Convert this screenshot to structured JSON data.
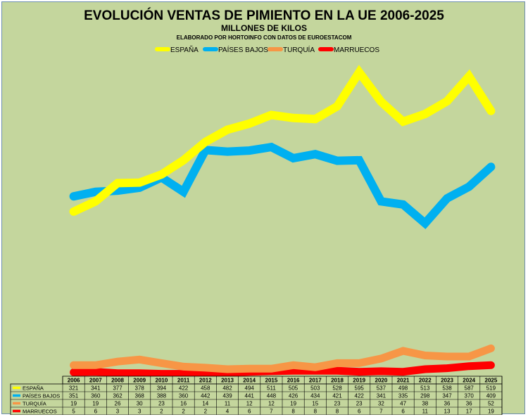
{
  "chart_data": {
    "type": "line",
    "title": "EVOLUCIÓN VENTAS DE PIMIENTO EN LA UE 2006-2025",
    "subtitle": "MILLONES DE KILOS",
    "source": "ELABORADO POR HORTOINFO CON DATOS DE EUROESTACOM",
    "xlabel": "",
    "ylabel": "",
    "ylim": [
      0,
      650
    ],
    "legend_position": "top",
    "x": [
      "2006",
      "2007",
      "2008",
      "2009",
      "2010",
      "2011",
      "2012",
      "2013",
      "2014",
      "2015",
      "2016",
      "2017",
      "2018",
      "2019",
      "2020",
      "2021",
      "2022",
      "2023",
      "2024",
      "2025"
    ],
    "series": [
      {
        "name": "ESPAÑA",
        "color": "#ffff00",
        "values": [
          321,
          341,
          377,
          378,
          394,
          422,
          458,
          482,
          494,
          511,
          505,
          503,
          528,
          595,
          537,
          498,
          513,
          538,
          587,
          519
        ]
      },
      {
        "name": "PAÍSES BAJOS",
        "color": "#00b0f0",
        "values": [
          351,
          360,
          362,
          368,
          388,
          360,
          442,
          439,
          441,
          448,
          426,
          434,
          421,
          422,
          341,
          335,
          298,
          347,
          370,
          409
        ]
      },
      {
        "name": "TURQUÍA",
        "color": "#f79646",
        "values": [
          19,
          19,
          26,
          30,
          23,
          16,
          14,
          11,
          12,
          12,
          19,
          15,
          23,
          23,
          32,
          47,
          38,
          36,
          36,
          52
        ]
      },
      {
        "name": "MARRUECOS",
        "color": "#ff0000",
        "values": [
          5,
          6,
          3,
          3,
          2,
          2,
          2,
          4,
          6,
          7,
          8,
          8,
          8,
          6,
          7,
          6,
          11,
          13,
          17,
          19
        ]
      }
    ]
  }
}
